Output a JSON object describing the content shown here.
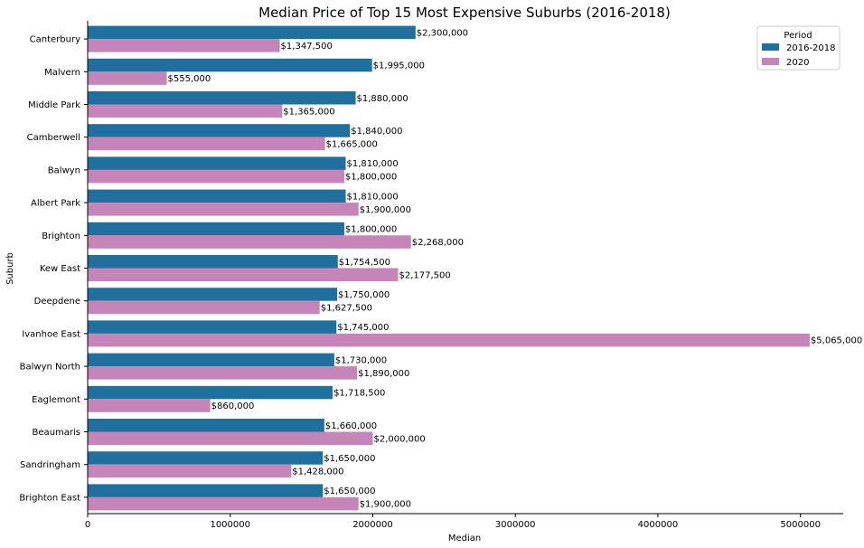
{
  "chart_data": {
    "type": "bar",
    "orientation": "horizontal",
    "title": "Median Price of Top 15 Most Expensive Suburbs (2016-2018)",
    "xlabel": "Median",
    "ylabel": "Suburb",
    "xlim": [
      0,
      5300000
    ],
    "x_ticks": [
      0,
      1000000,
      2000000,
      3000000,
      4000000,
      5000000
    ],
    "x_tick_labels": [
      "0",
      "1000000",
      "2000000",
      "3000000",
      "4000000",
      "5000000"
    ],
    "categories": [
      "Canterbury",
      "Malvern",
      "Middle Park",
      "Camberwell",
      "Balwyn",
      "Albert Park",
      "Brighton",
      "Kew East",
      "Deepdene",
      "Ivanhoe East",
      "Balwyn North",
      "Eaglemont",
      "Beaumaris",
      "Sandringham",
      "Brighton East"
    ],
    "series": [
      {
        "name": "2016-2018",
        "color": "#1f6f9f",
        "values": [
          2300000,
          1995000,
          1880000,
          1840000,
          1810000,
          1810000,
          1800000,
          1754500,
          1750000,
          1745000,
          1730000,
          1718500,
          1660000,
          1650000,
          1650000
        ],
        "labels": [
          "$2,300,000",
          "$1,995,000",
          "$1,880,000",
          "$1,840,000",
          "$1,810,000",
          "$1,810,000",
          "$1,800,000",
          "$1,754,500",
          "$1,750,000",
          "$1,745,000",
          "$1,730,000",
          "$1,718,500",
          "$1,660,000",
          "$1,650,000",
          "$1,650,000"
        ]
      },
      {
        "name": "2020",
        "color": "#c585b8",
        "values": [
          1347500,
          555000,
          1365000,
          1665000,
          1800000,
          1900000,
          2268000,
          2177500,
          1627500,
          5065000,
          1890000,
          860000,
          2000000,
          1428000,
          1900000
        ],
        "labels": [
          "$1,347,500",
          "$555,000",
          "$1,365,000",
          "$1,665,000",
          "$1,800,000",
          "$1,900,000",
          "$2,268,000",
          "$2,177,500",
          "$1,627,500",
          "$5,065,000",
          "$1,890,000",
          "$860,000",
          "$2,000,000",
          "$1,428,000",
          "$1,900,000"
        ]
      }
    ],
    "legend": {
      "title": "Period",
      "position": "top-right"
    },
    "grid": false
  }
}
